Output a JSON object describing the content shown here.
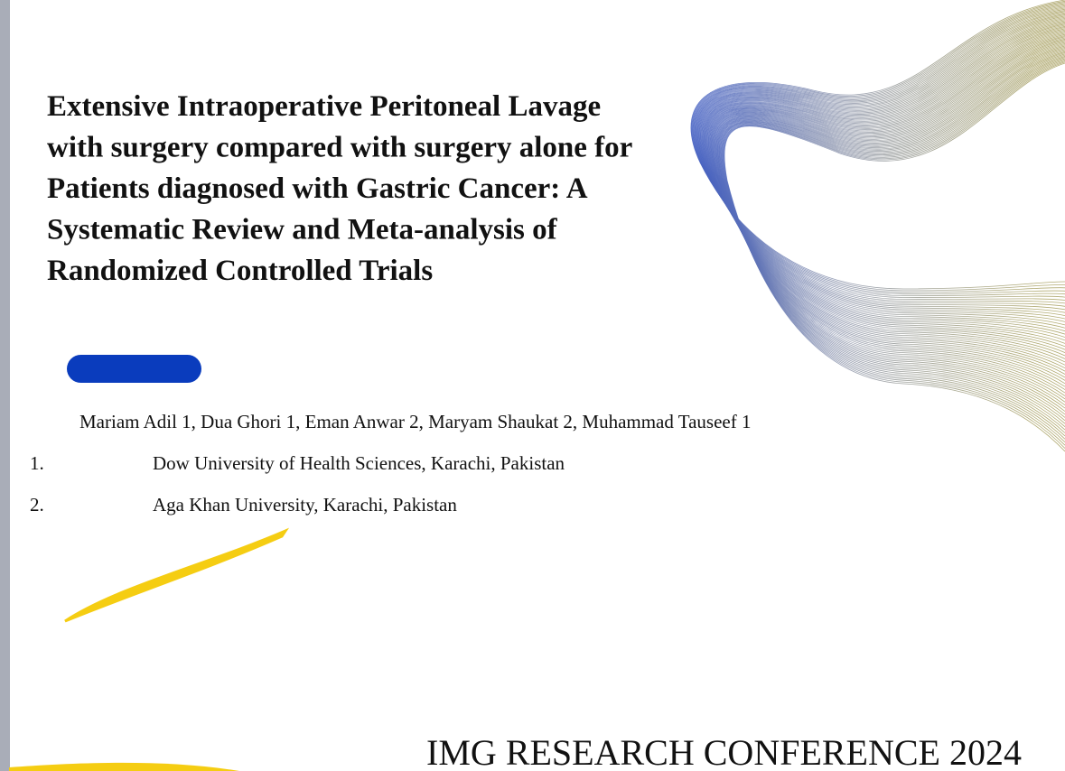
{
  "title_lines": [
    "Extensive Intraoperative Peritoneal Lavage",
    "with surgery compared with surgery alone for",
    "Patients diagnosed with Gastric Cancer: A",
    "Systematic Review and Meta-analysis of",
    "Randomized Controlled Trials"
  ],
  "authors": "Mariam Adil 1, Dua Ghori 1, Eman Anwar 2, Maryam Shaukat 2, Muhammad Tauseef 1",
  "affiliations": [
    {
      "number": "1.",
      "text": "Dow University of Health Sciences, Karachi, Pakistan"
    },
    {
      "number": "2.",
      "text": "Aga Khan University, Karachi, Pakistan"
    }
  ],
  "footer": "IMG RESEARCH CONFERENCE 2024"
}
